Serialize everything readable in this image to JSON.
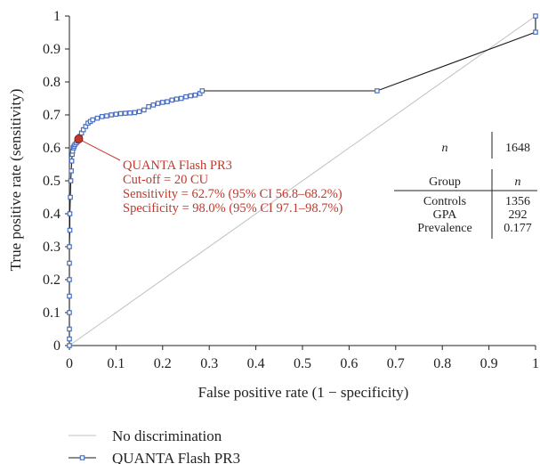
{
  "chart_data": {
    "type": "line",
    "xlabel": "False positive rate (1 − specificity)",
    "ylabel": "True positive rate (sensitivity)",
    "xlim": [
      0,
      1
    ],
    "ylim": [
      0,
      1
    ],
    "x_ticks": [
      "0",
      "0.1",
      "0.2",
      "0.3",
      "0.4",
      "0.5",
      "0.6",
      "0.7",
      "0.8",
      "0.9",
      "1"
    ],
    "y_ticks": [
      "0",
      "0.1",
      "0.2",
      "0.3",
      "0.4",
      "0.5",
      "0.6",
      "0.7",
      "0.8",
      "0.9",
      "1"
    ],
    "grid": false,
    "legend_position": "bottom-left",
    "series": [
      {
        "name": "No discrimination",
        "color": "#c0c0c0",
        "marker": "none",
        "x": [
          0,
          1
        ],
        "y": [
          0,
          1
        ]
      },
      {
        "name": "QUANTA Flash PR3",
        "color": "#4a6fc0",
        "line_color": "#1a1a1a",
        "marker": "square",
        "x": [
          0,
          0,
          0,
          0,
          0,
          0,
          0,
          0,
          0.001,
          0.001,
          0.002,
          0.003,
          0.004,
          0.005,
          0.006,
          0.007,
          0.008,
          0.009,
          0.01,
          0.012,
          0.015,
          0.018,
          0.02,
          0.023,
          0.026,
          0.03,
          0.035,
          0.04,
          0.045,
          0.05,
          0.06,
          0.07,
          0.08,
          0.09,
          0.1,
          0.11,
          0.12,
          0.13,
          0.14,
          0.15,
          0.16,
          0.17,
          0.18,
          0.19,
          0.2,
          0.21,
          0.22,
          0.23,
          0.24,
          0.25,
          0.26,
          0.27,
          0.28,
          0.285,
          0.66,
          1,
          1
        ],
        "y": [
          0,
          0.02,
          0.05,
          0.1,
          0.15,
          0.2,
          0.25,
          0.3,
          0.35,
          0.4,
          0.45,
          0.5,
          0.53,
          0.56,
          0.58,
          0.59,
          0.6,
          0.6,
          0.605,
          0.61,
          0.615,
          0.62,
          0.627,
          0.635,
          0.645,
          0.655,
          0.665,
          0.675,
          0.68,
          0.685,
          0.69,
          0.695,
          0.697,
          0.7,
          0.702,
          0.704,
          0.705,
          0.706,
          0.707,
          0.71,
          0.715,
          0.725,
          0.73,
          0.735,
          0.738,
          0.74,
          0.745,
          0.748,
          0.75,
          0.755,
          0.758,
          0.76,
          0.765,
          0.773,
          0.773,
          0.951,
          1
        ]
      }
    ],
    "cutoff_point": {
      "x": 0.02,
      "y": 0.627,
      "color": "#c0392b"
    },
    "annotation": {
      "color": "#c0392b",
      "lines": [
        "QUANTA Flash PR3",
        "Cut-off = 20 CU",
        "Sensitivity = 62.7% (95% CI 56.8–68.2%)",
        "Specificity = 98.0% (95% CI 97.1–98.7%)"
      ]
    },
    "table": {
      "n_label": "n",
      "n_value": "1648",
      "headers": [
        "Group",
        "n"
      ],
      "rows": [
        [
          "Controls",
          "1356"
        ],
        [
          "GPA",
          "292"
        ],
        [
          "Prevalence",
          "0.177"
        ]
      ]
    }
  }
}
